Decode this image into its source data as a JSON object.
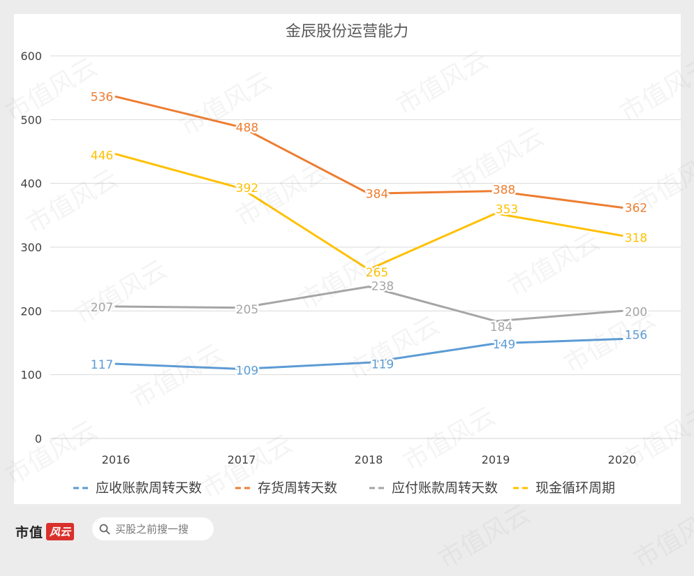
{
  "chart_data": {
    "type": "line",
    "title": "金辰股份运营能力",
    "categories": [
      "2016",
      "2017",
      "2018",
      "2019",
      "2020"
    ],
    "ylim": [
      0,
      600
    ],
    "yticks": [
      0,
      100,
      200,
      300,
      400,
      500,
      600
    ],
    "grid": true,
    "legend_position": "bottom",
    "series": [
      {
        "name": "应收账款周转天数",
        "values": [
          117,
          109,
          119,
          149,
          156
        ],
        "color": "#5b9bd5"
      },
      {
        "name": "存货周转天数",
        "values": [
          536,
          488,
          384,
          388,
          362
        ],
        "color": "#ed7d31"
      },
      {
        "name": "应付账款周转天数",
        "values": [
          207,
          205,
          238,
          184,
          200
        ],
        "color": "#a5a5a5"
      },
      {
        "name": "现金循环周期",
        "values": [
          446,
          392,
          265,
          353,
          318
        ],
        "color": "#ffc000"
      }
    ]
  },
  "watermark": "市值风云",
  "footer": {
    "brand": "市值",
    "brand_tag": "风云",
    "search_placeholder": "买股之前搜一搜"
  }
}
